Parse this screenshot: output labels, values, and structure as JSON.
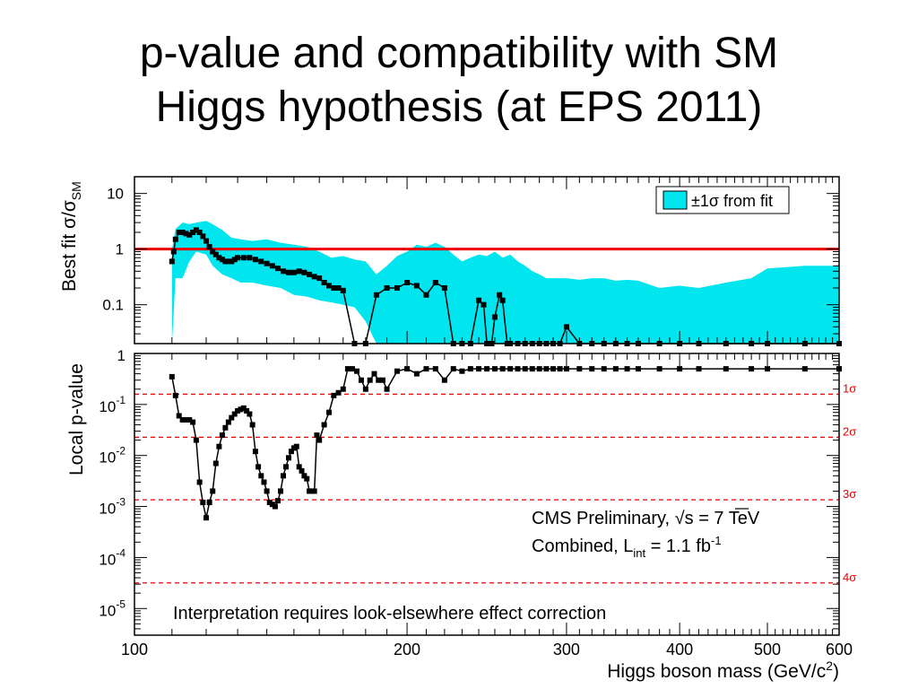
{
  "slide": {
    "title_line1": "p-value and compatibility with SM",
    "title_line2": "Higgs hypothesis (at EPS 2011)"
  },
  "chart_data": [
    {
      "type": "line",
      "panel": "top",
      "ylabel_main": "Best fit σ/σ",
      "ylabel_sub": "SM",
      "yscale": "log",
      "ylim": [
        0.02,
        20
      ],
      "xlim": [
        100,
        600
      ],
      "ytick_labels": [
        "10",
        "1",
        "0.1"
      ],
      "ytick_values": [
        10,
        1,
        0.1
      ],
      "legend": {
        "label": "±1σ from fit",
        "placement": "top-right",
        "color": "#00e5ee"
      },
      "reference_line": {
        "value": 1,
        "color": "#ee0000"
      },
      "band": {
        "color": "#00e5ee",
        "x": [
          110,
          111,
          113,
          115,
          117,
          120,
          122,
          125,
          128,
          131,
          135,
          140,
          145,
          150,
          155,
          160,
          165,
          170,
          175,
          180,
          185,
          190,
          195,
          200,
          205,
          210,
          215,
          220,
          225,
          230,
          235,
          240,
          245,
          250,
          255,
          260,
          265,
          270,
          275,
          280,
          285,
          290,
          295,
          300,
          310,
          320,
          330,
          340,
          350,
          360,
          380,
          400,
          420,
          450,
          480,
          500,
          550,
          600
        ],
        "upper": [
          1.0,
          2.3,
          3.0,
          2.8,
          3.0,
          3.2,
          2.8,
          2.2,
          1.6,
          1.5,
          1.4,
          1.5,
          1.3,
          1.2,
          1.1,
          0.9,
          0.7,
          0.75,
          0.65,
          0.6,
          0.35,
          0.5,
          0.75,
          0.9,
          1.2,
          1.1,
          1.3,
          1.1,
          0.8,
          0.6,
          0.7,
          0.8,
          0.75,
          0.9,
          0.7,
          0.8,
          0.6,
          0.5,
          0.4,
          0.35,
          0.3,
          0.3,
          0.3,
          0.3,
          0.28,
          0.3,
          0.3,
          0.27,
          0.28,
          0.27,
          0.2,
          0.22,
          0.2,
          0.25,
          0.3,
          0.45,
          0.5,
          0.5
        ],
        "lower": [
          0.02,
          0.3,
          0.3,
          0.6,
          0.9,
          0.8,
          0.5,
          0.35,
          0.3,
          0.25,
          0.25,
          0.22,
          0.2,
          0.15,
          0.14,
          0.12,
          0.11,
          0.1,
          0.09,
          0.05,
          0.02,
          0.02,
          0.02,
          0.02,
          0.02,
          0.02,
          0.02,
          0.02,
          0.02,
          0.02,
          0.02,
          0.02,
          0.02,
          0.02,
          0.02,
          0.02,
          0.02,
          0.02,
          0.02,
          0.02,
          0.02,
          0.02,
          0.02,
          0.02,
          0.02,
          0.02,
          0.02,
          0.02,
          0.02,
          0.02,
          0.02,
          0.02,
          0.02,
          0.02,
          0.02,
          0.02,
          0.02,
          0.02
        ]
      },
      "series": [
        {
          "color": "#000000",
          "x": [
            110,
            110.5,
            111,
            112,
            113,
            114,
            115,
            116,
            117,
            118,
            119,
            120,
            121,
            122,
            123,
            124,
            125,
            126,
            127,
            128,
            129,
            130,
            132,
            134,
            136,
            138,
            140,
            142,
            144,
            146,
            148,
            150,
            152,
            154,
            156,
            158,
            160,
            162,
            164,
            166,
            168,
            170,
            175,
            180,
            185,
            190,
            195,
            200,
            205,
            210,
            215,
            220,
            225,
            230,
            235,
            240,
            243,
            245,
            248,
            250,
            253,
            255,
            258,
            260,
            265,
            270,
            275,
            280,
            285,
            290,
            295,
            300,
            310,
            320,
            330,
            340,
            350,
            360,
            380,
            400,
            420,
            450,
            480,
            500,
            550,
            600
          ],
          "y": [
            0.6,
            0.9,
            1.5,
            2.0,
            2.0,
            1.9,
            1.8,
            2.0,
            2.2,
            2.0,
            1.7,
            1.4,
            1.1,
            0.9,
            0.8,
            0.7,
            0.65,
            0.6,
            0.6,
            0.6,
            0.65,
            0.7,
            0.7,
            0.7,
            0.65,
            0.6,
            0.55,
            0.5,
            0.45,
            0.4,
            0.38,
            0.38,
            0.4,
            0.38,
            0.35,
            0.32,
            0.3,
            0.25,
            0.22,
            0.2,
            0.2,
            0.18,
            0.02,
            0.02,
            0.15,
            0.2,
            0.2,
            0.25,
            0.22,
            0.15,
            0.25,
            0.2,
            0.02,
            0.02,
            0.02,
            0.12,
            0.1,
            0.02,
            0.02,
            0.06,
            0.15,
            0.12,
            0.02,
            0.02,
            0.02,
            0.02,
            0.02,
            0.02,
            0.02,
            0.02,
            0.02,
            0.04,
            0.02,
            0.02,
            0.02,
            0.02,
            0.02,
            0.02,
            0.02,
            0.02,
            0.02,
            0.02,
            0.02,
            0.02,
            0.02,
            0.02
          ]
        }
      ]
    },
    {
      "type": "line",
      "panel": "bottom",
      "ylabel": "Local p-value",
      "xlabel_main": "Higgs boson mass (GeV/c",
      "xlabel_sup": "2",
      "xlabel_end": ")",
      "yscale": "log",
      "ylim": [
        3e-06,
        1
      ],
      "xlim": [
        100,
        600
      ],
      "xtick_labels": [
        "100",
        "200",
        "300",
        "400",
        "500",
        "600"
      ],
      "xtick_values": [
        100,
        200,
        300,
        400,
        500,
        600
      ],
      "ytick_labels": [
        {
          "mant": "1",
          "exp": ""
        },
        {
          "mant": "10",
          "exp": "-1"
        },
        {
          "mant": "10",
          "exp": "-2"
        },
        {
          "mant": "10",
          "exp": "-3"
        },
        {
          "mant": "10",
          "exp": "-4"
        },
        {
          "mant": "10",
          "exp": "-5"
        }
      ],
      "ytick_values": [
        1,
        0.1,
        0.01,
        0.001,
        0.0001,
        1e-05
      ],
      "sigma_lines": [
        {
          "label": "1σ",
          "p": 0.159
        },
        {
          "label": "2σ",
          "p": 0.0228
        },
        {
          "label": "3σ",
          "p": 0.00135
        },
        {
          "label": "4σ",
          "p": 3.17e-05
        }
      ],
      "sigma_color": "#ee0000",
      "annotations": {
        "cms_line1_pre": "CMS Preliminary,  ",
        "cms_line1_post": "s = 7 TeV",
        "cms_line2_pre": "Combined, L",
        "cms_line2_sub": "int",
        "cms_line2_post": " = 1.1 fb",
        "cms_line2_sup": "-1",
        "footnote": "Interpretation requires look-elsewhere effect correction"
      },
      "series": [
        {
          "color": "#000000",
          "x": [
            110,
            111,
            112,
            113,
            114,
            115,
            116,
            117,
            118,
            119,
            120,
            121,
            122,
            123,
            124,
            125,
            126,
            127,
            128,
            129,
            130,
            131,
            132,
            133,
            134,
            135,
            136,
            137,
            138,
            139,
            140,
            141,
            142,
            143,
            144,
            145,
            146,
            147,
            148,
            149,
            150,
            151,
            152,
            153,
            154,
            155,
            156,
            157,
            158,
            159,
            160,
            162,
            164,
            166,
            168,
            170,
            172,
            174,
            176,
            178,
            180,
            182,
            184,
            186,
            188,
            190,
            195,
            200,
            205,
            210,
            215,
            220,
            225,
            230,
            235,
            240,
            245,
            250,
            255,
            260,
            265,
            270,
            275,
            280,
            285,
            290,
            295,
            300,
            310,
            320,
            330,
            340,
            350,
            360,
            380,
            400,
            420,
            450,
            480,
            500,
            550,
            600
          ],
          "y": [
            0.35,
            0.15,
            0.06,
            0.05,
            0.05,
            0.05,
            0.045,
            0.02,
            0.003,
            0.0012,
            0.0006,
            0.0012,
            0.002,
            0.007,
            0.015,
            0.025,
            0.035,
            0.045,
            0.055,
            0.065,
            0.075,
            0.08,
            0.085,
            0.075,
            0.065,
            0.04,
            0.012,
            0.006,
            0.004,
            0.003,
            0.002,
            0.0012,
            0.0011,
            0.001,
            0.0013,
            0.002,
            0.004,
            0.006,
            0.009,
            0.012,
            0.014,
            0.015,
            0.006,
            0.005,
            0.004,
            0.0035,
            0.002,
            0.002,
            0.002,
            0.025,
            0.02,
            0.04,
            0.07,
            0.15,
            0.17,
            0.2,
            0.5,
            0.5,
            0.45,
            0.3,
            0.2,
            0.3,
            0.4,
            0.3,
            0.3,
            0.2,
            0.45,
            0.5,
            0.4,
            0.5,
            0.5,
            0.3,
            0.5,
            0.45,
            0.5,
            0.5,
            0.5,
            0.5,
            0.5,
            0.5,
            0.5,
            0.5,
            0.5,
            0.5,
            0.5,
            0.5,
            0.5,
            0.5,
            0.5,
            0.5,
            0.5,
            0.5,
            0.5,
            0.5,
            0.5,
            0.5,
            0.5,
            0.5,
            0.5,
            0.5,
            0.5,
            0.5
          ]
        }
      ]
    }
  ]
}
